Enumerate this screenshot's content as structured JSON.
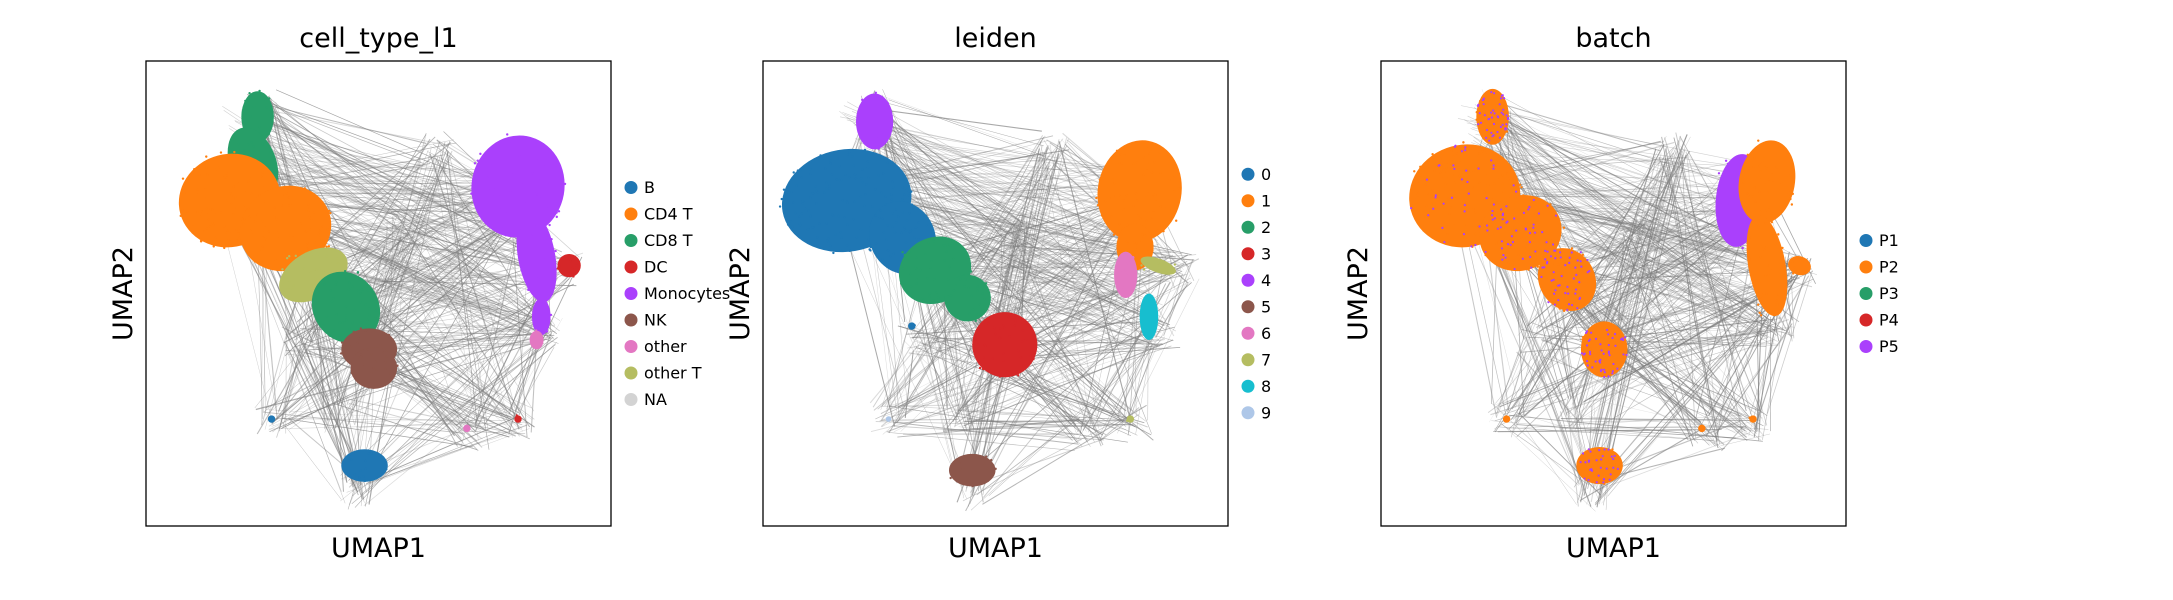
{
  "chart_data": [
    {
      "type": "scatter",
      "title": "cell_type_l1",
      "xlabel": "UMAP1",
      "ylabel": "UMAP2",
      "legend_placement": "right",
      "grid": false,
      "legend": [
        {
          "name": "B",
          "color": "#1f77b4"
        },
        {
          "name": "CD4 T",
          "color": "#ff7f0e"
        },
        {
          "name": "CD8 T",
          "color": "#279e68"
        },
        {
          "name": "DC",
          "color": "#d62728"
        },
        {
          "name": "Monocytes",
          "color": "#aa40fc"
        },
        {
          "name": "NK",
          "color": "#8c564b"
        },
        {
          "name": "other",
          "color": "#e377c2"
        },
        {
          "name": "other T",
          "color": "#b5bd61"
        },
        {
          "name": "NA",
          "color": "#d3d3d3"
        }
      ]
    },
    {
      "type": "scatter",
      "title": "leiden",
      "xlabel": "UMAP1",
      "ylabel": "UMAP2",
      "legend_placement": "right",
      "grid": false,
      "legend": [
        {
          "name": "0",
          "color": "#1f77b4"
        },
        {
          "name": "1",
          "color": "#ff7f0e"
        },
        {
          "name": "2",
          "color": "#279e68"
        },
        {
          "name": "3",
          "color": "#d62728"
        },
        {
          "name": "4",
          "color": "#aa40fc"
        },
        {
          "name": "5",
          "color": "#8c564b"
        },
        {
          "name": "6",
          "color": "#e377c2"
        },
        {
          "name": "7",
          "color": "#b5bd61"
        },
        {
          "name": "8",
          "color": "#17becf"
        },
        {
          "name": "9",
          "color": "#aec7e8"
        }
      ]
    },
    {
      "type": "scatter",
      "title": "batch",
      "xlabel": "UMAP1",
      "ylabel": "UMAP2",
      "legend_placement": "right",
      "grid": false,
      "legend": [
        {
          "name": "P1",
          "color": "#1f77b4"
        },
        {
          "name": "P2",
          "color": "#ff7f0e"
        },
        {
          "name": "P3",
          "color": "#279e68"
        },
        {
          "name": "P4",
          "color": "#d62728"
        },
        {
          "name": "P5",
          "color": "#aa40fc"
        }
      ]
    }
  ]
}
